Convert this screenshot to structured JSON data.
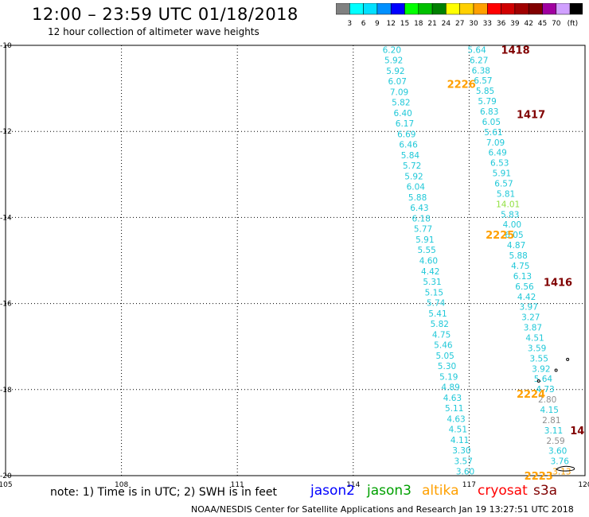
{
  "header": {
    "title": "12:00 – 23:59 UTC 01/18/2018",
    "subtitle": "12 hour collection of altimeter wave heights"
  },
  "colorbar": {
    "unit": "(ft)",
    "bins": [
      {
        "label": "",
        "color": "#808080"
      },
      {
        "label": "3",
        "color": "#00ffff"
      },
      {
        "label": "6",
        "color": "#00e0ff"
      },
      {
        "label": "9",
        "color": "#0090ff"
      },
      {
        "label": "12",
        "color": "#0000ff"
      },
      {
        "label": "15",
        "color": "#00ff00"
      },
      {
        "label": "18",
        "color": "#00c000"
      },
      {
        "label": "21",
        "color": "#008000"
      },
      {
        "label": "24",
        "color": "#ffff00"
      },
      {
        "label": "27",
        "color": "#ffd000"
      },
      {
        "label": "30",
        "color": "#ffa000"
      },
      {
        "label": "33",
        "color": "#ff0000"
      },
      {
        "label": "36",
        "color": "#d00000"
      },
      {
        "label": "39",
        "color": "#a00000"
      },
      {
        "label": "42",
        "color": "#800000"
      },
      {
        "label": "45",
        "color": "#a000a0"
      },
      {
        "label": "70",
        "color": "#d0a0ff"
      },
      {
        "label": "",
        "color": "#000000"
      }
    ]
  },
  "axes": {
    "lon_ticks": [
      "105",
      "108",
      "111",
      "114",
      "117",
      "120"
    ],
    "lat_ticks": [
      "-10",
      "-12",
      "-14",
      "-16",
      "-18",
      "-20"
    ],
    "lon_range": [
      105,
      120
    ],
    "lat_range": [
      -20,
      -10
    ]
  },
  "tracks": [
    {
      "id": "track-west",
      "color": "#20c8d8",
      "lon_start": 115.0,
      "lon_end": 116.9,
      "values": [
        "6.20",
        "5.92",
        "5.92",
        "6.07",
        "7.09",
        "5.82",
        "6.40",
        "6.17",
        "6.69",
        "6.46",
        "5.84",
        "5.72",
        "5.92",
        "6.04",
        "5.88",
        "6.43",
        "6.18",
        "5.77",
        "5.91",
        "5.55",
        "4.60",
        "4.42",
        "5.31",
        "5.15",
        "5.74",
        "5.41",
        "5.82",
        "4.75",
        "5.46",
        "5.05",
        "5.30",
        "5.19",
        "4.89",
        "4.63",
        "5.11",
        "4.63",
        "4.51",
        "4.11",
        "3.30",
        "3.57",
        "3.60"
      ]
    },
    {
      "id": "track-east",
      "color": "#20c8d8",
      "lon_start": 117.2,
      "lon_end": 119.4,
      "values": [
        "5.64",
        "6.27",
        "6.38",
        "6.57",
        "5.85",
        "5.79",
        "6.83",
        "6.05",
        "5.61",
        "7.09",
        "6.49",
        "6.53",
        "5.91",
        "6.57",
        "5.81",
        "14.01",
        "5.83",
        "4.00",
        "6.05",
        "4.87",
        "5.88",
        "4.75",
        "6.13",
        "6.56",
        "4.42",
        "3.97",
        "3.27",
        "3.87",
        "4.51",
        "3.59",
        "3.55",
        "3.92",
        "5.64",
        "4.73",
        "2.80",
        "4.15",
        "2.81",
        "3.11",
        "2.59",
        "3.60",
        "3.76",
        "3.13"
      ],
      "value_colors": {
        "15": "#90e040",
        "34": "#909090",
        "36": "#909090",
        "38": "#909090",
        "41": "#ffa000"
      }
    }
  ],
  "pass_labels": [
    {
      "text": "1418",
      "lon": 118.2,
      "lat": -10.1,
      "color": "#800000"
    },
    {
      "text": "2226",
      "lon": 116.8,
      "lat": -10.9,
      "color": "#ffa000"
    },
    {
      "text": "1417",
      "lon": 118.6,
      "lat": -11.6,
      "color": "#800000"
    },
    {
      "text": "2225",
      "lon": 117.8,
      "lat": -14.4,
      "color": "#ffa000"
    },
    {
      "text": "1416",
      "lon": 119.3,
      "lat": -15.5,
      "color": "#800000"
    },
    {
      "text": "2224",
      "lon": 118.6,
      "lat": -18.1,
      "color": "#ffa000"
    },
    {
      "text": "14",
      "lon": 119.8,
      "lat": -18.95,
      "color": "#800000"
    },
    {
      "text": "2223",
      "lon": 118.8,
      "lat": -20.0,
      "color": "#ffa000"
    }
  ],
  "note": "note:  1) Time is in UTC;  2) SWH is in feet",
  "satellites": [
    {
      "name": "jason2",
      "color": "#0000ff"
    },
    {
      "name": "jason3",
      "color": "#00a000"
    },
    {
      "name": "altika",
      "color": "#ffa000"
    },
    {
      "name": "cryosat",
      "color": "#ff0000"
    },
    {
      "name": "s3a",
      "color": "#800000"
    }
  ],
  "footer": "NOAA/NESDIS Center for Satellite Applications and Research    Jan 19 13:27:51 UTC 2018"
}
